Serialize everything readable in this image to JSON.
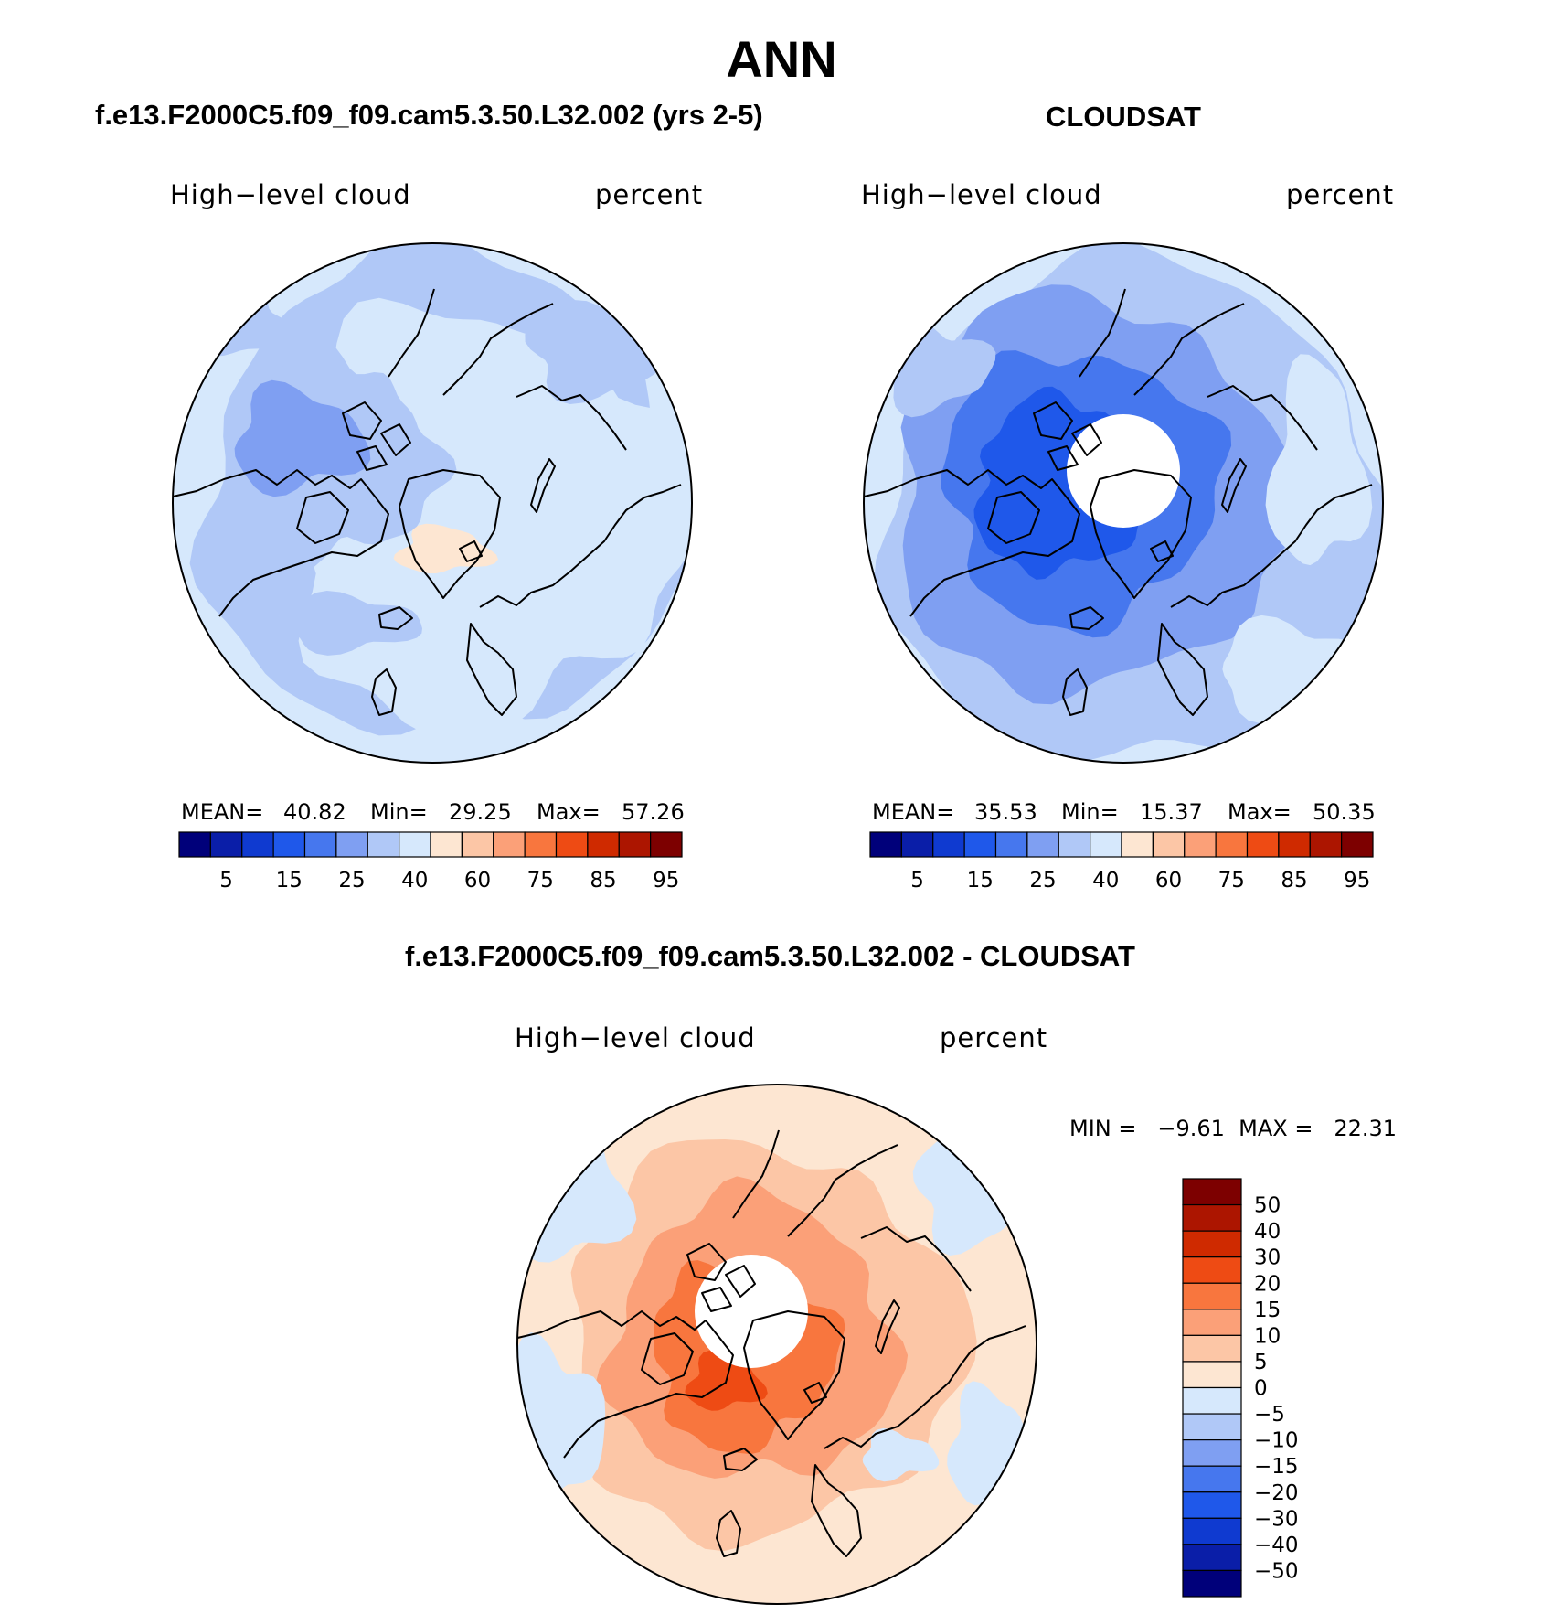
{
  "figure": {
    "title": "ANN",
    "panels": [
      {
        "title": "f.e13.F2000C5.f09_f09.cam5.3.50.L32.002 (yrs 2-5)",
        "left_label": "High−level cloud",
        "right_label": "percent",
        "stats": {
          "mean_label": "MEAN=",
          "mean": "40.82",
          "min_label": "Min=",
          "min": "29.25",
          "max_label": "Max=",
          "max": "57.26"
        }
      },
      {
        "title": "CLOUDSAT",
        "left_label": "High−level cloud",
        "right_label": "percent",
        "stats": {
          "mean_label": "MEAN=",
          "mean": "35.53",
          "min_label": "Min=",
          "min": "15.37",
          "max_label": "Max=",
          "max": "50.35"
        }
      },
      {
        "title": "f.e13.F2000C5.f09_f09.cam5.3.50.L32.002 - CLOUDSAT",
        "left_label": "High−level cloud",
        "right_label": "percent",
        "stats_text": "MIN =   −9.61  MAX =   22.31"
      }
    ]
  },
  "chart_data": [
    {
      "type": "heatmap",
      "projection": "north polar stereographic",
      "title": "f.e13.F2000C5.f09_f09.cam5.3.50.L32.002 (yrs 2-5)",
      "variable": "High−level cloud",
      "units": "percent",
      "mean": 40.82,
      "min": 29.25,
      "max": 57.26,
      "colorbar": {
        "orientation": "horizontal",
        "colors": [
          "#00007a",
          "#0a1ea8",
          "#0f3ad0",
          "#1f58ea",
          "#4677ee",
          "#7f9ff2",
          "#b0c8f7",
          "#d6e8fc",
          "#fde6d2",
          "#fcc6a6",
          "#fba078",
          "#f8763e",
          "#ee4b14",
          "#cf2a00",
          "#ac1500",
          "#7d0000"
        ],
        "tick_labels": [
          "5",
          "15",
          "25",
          "40",
          "60",
          "75",
          "85",
          "95"
        ]
      }
    },
    {
      "type": "heatmap",
      "projection": "north polar stereographic",
      "title": "CLOUDSAT",
      "variable": "High−level cloud",
      "units": "percent",
      "mean": 35.53,
      "min": 15.37,
      "max": 50.35,
      "colorbar": {
        "orientation": "horizontal",
        "colors": [
          "#00007a",
          "#0a1ea8",
          "#0f3ad0",
          "#1f58ea",
          "#4677ee",
          "#7f9ff2",
          "#b0c8f7",
          "#d6e8fc",
          "#fde6d2",
          "#fcc6a6",
          "#fba078",
          "#f8763e",
          "#ee4b14",
          "#cf2a00",
          "#ac1500",
          "#7d0000"
        ],
        "tick_labels": [
          "5",
          "15",
          "25",
          "40",
          "60",
          "75",
          "85",
          "95"
        ]
      }
    },
    {
      "type": "heatmap",
      "projection": "north polar stereographic",
      "title": "f.e13.F2000C5.f09_f09.cam5.3.50.L32.002 - CLOUDSAT",
      "variable": "High−level cloud",
      "units": "percent",
      "min": -9.61,
      "max": 22.31,
      "colorbar": {
        "orientation": "vertical",
        "colors": [
          "#7d0000",
          "#ac1500",
          "#cf2a00",
          "#ee4b14",
          "#f8763e",
          "#fba078",
          "#fcc6a6",
          "#fde6d2",
          "#d6e8fc",
          "#b0c8f7",
          "#7f9ff2",
          "#4677ee",
          "#1f58ea",
          "#0f3ad0",
          "#0a1ea8",
          "#00007a"
        ],
        "tick_labels": [
          "50",
          "40",
          "30",
          "20",
          "15",
          "10",
          "5",
          "0",
          "−5",
          "−10",
          "−15",
          "−20",
          "−30",
          "−40",
          "−50"
        ]
      }
    }
  ]
}
